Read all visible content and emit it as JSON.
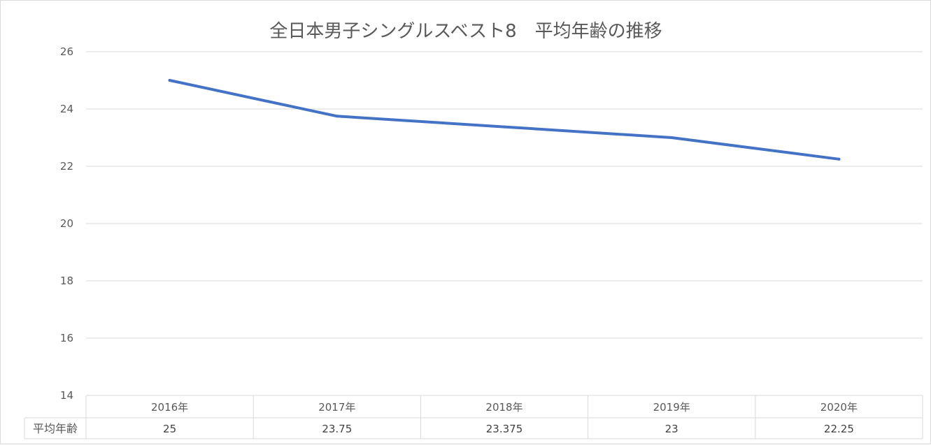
{
  "chart_data": {
    "type": "line",
    "title": "全日本男子シングルスベスト8　平均年齢の推移",
    "categories": [
      "2016年",
      "2017年",
      "2018年",
      "2019年",
      "2020年"
    ],
    "series": [
      {
        "name": "平均年齢",
        "values": [
          25,
          23.75,
          23.375,
          23,
          22.25
        ]
      }
    ],
    "value_labels": [
      "25",
      "23.75",
      "23.375",
      "23",
      "22.25"
    ],
    "ylim": [
      14,
      26
    ],
    "yticks": [
      "26",
      "24",
      "22",
      "20",
      "18",
      "16",
      "14"
    ],
    "grid": true,
    "legend": "none",
    "data_table": true,
    "line_color": "#4472c4"
  }
}
